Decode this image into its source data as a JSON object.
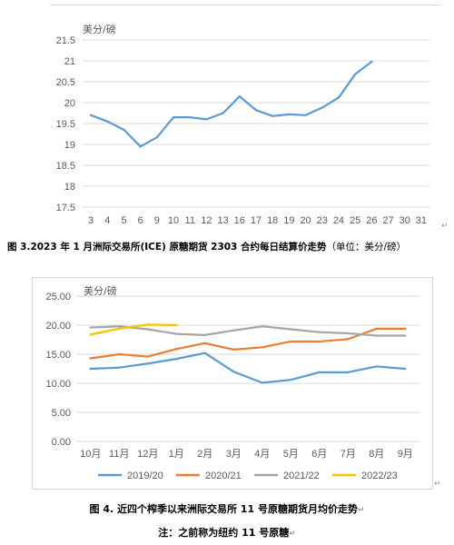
{
  "figure1": {
    "caption": "图 3.2023 年 1 月洲际交易所(ICE) 原糖期货 2303 合约每日结算价走势",
    "caption_unit": "（单位：美分/磅）",
    "chart_data": {
      "type": "line",
      "ylabel": "美分/磅",
      "categories": [
        "3",
        "4",
        "5",
        "6",
        "9",
        "10",
        "11",
        "12",
        "13",
        "16",
        "17",
        "18",
        "19",
        "20",
        "23",
        "24",
        "25",
        "26",
        "27",
        "30",
        "31"
      ],
      "ylim": [
        17.5,
        21.5
      ],
      "yticks": [
        "17.5",
        "18",
        "18.5",
        "19",
        "19.5",
        "20",
        "20.5",
        "21",
        "21.5"
      ],
      "series": [
        {
          "color": "#5b9bd5",
          "values": [
            19.7,
            19.55,
            19.35,
            18.95,
            19.17,
            19.65,
            19.65,
            19.6,
            19.75,
            20.15,
            19.82,
            19.68,
            19.72,
            19.7,
            19.88,
            20.12,
            20.68,
            20.98,
            null,
            null,
            null
          ]
        }
      ],
      "grid": true
    }
  },
  "figure2": {
    "caption": "图 4. 近四个榨季以来洲际交易所 11 号原糖期货月均价走势",
    "note": "注：之前称为纽约 11 号原糖",
    "chart_data": {
      "type": "line",
      "ylabel": "美分/磅",
      "categories": [
        "10月",
        "11月",
        "12月",
        "1月",
        "2月",
        "3月",
        "4月",
        "5月",
        "6月",
        "7月",
        "8月",
        "9月"
      ],
      "ylim": [
        0,
        25
      ],
      "yticks": [
        "0.00",
        "5.00",
        "10.00",
        "15.00",
        "20.00",
        "25.00"
      ],
      "legend_position": "bottom",
      "grid": true,
      "series": [
        {
          "name": "2019/20",
          "color": "#5b9bd5",
          "values": [
            12.5,
            12.7,
            13.4,
            14.2,
            15.2,
            12.0,
            10.1,
            10.6,
            11.9,
            11.9,
            12.9,
            12.5
          ]
        },
        {
          "name": "2020/21",
          "color": "#ed7d31",
          "values": [
            14.3,
            15.0,
            14.6,
            15.9,
            16.9,
            15.8,
            16.2,
            17.2,
            17.2,
            17.6,
            19.4,
            19.4
          ]
        },
        {
          "name": "2021/22",
          "color": "#a5a5a5",
          "values": [
            19.6,
            19.8,
            19.3,
            18.5,
            18.3,
            19.1,
            19.8,
            19.3,
            18.8,
            18.6,
            18.2,
            18.2
          ]
        },
        {
          "name": "2022/23",
          "color": "#ffc000",
          "values": [
            18.4,
            19.4,
            20.1,
            20.0,
            null,
            null,
            null,
            null,
            null,
            null,
            null,
            null
          ]
        }
      ]
    }
  }
}
